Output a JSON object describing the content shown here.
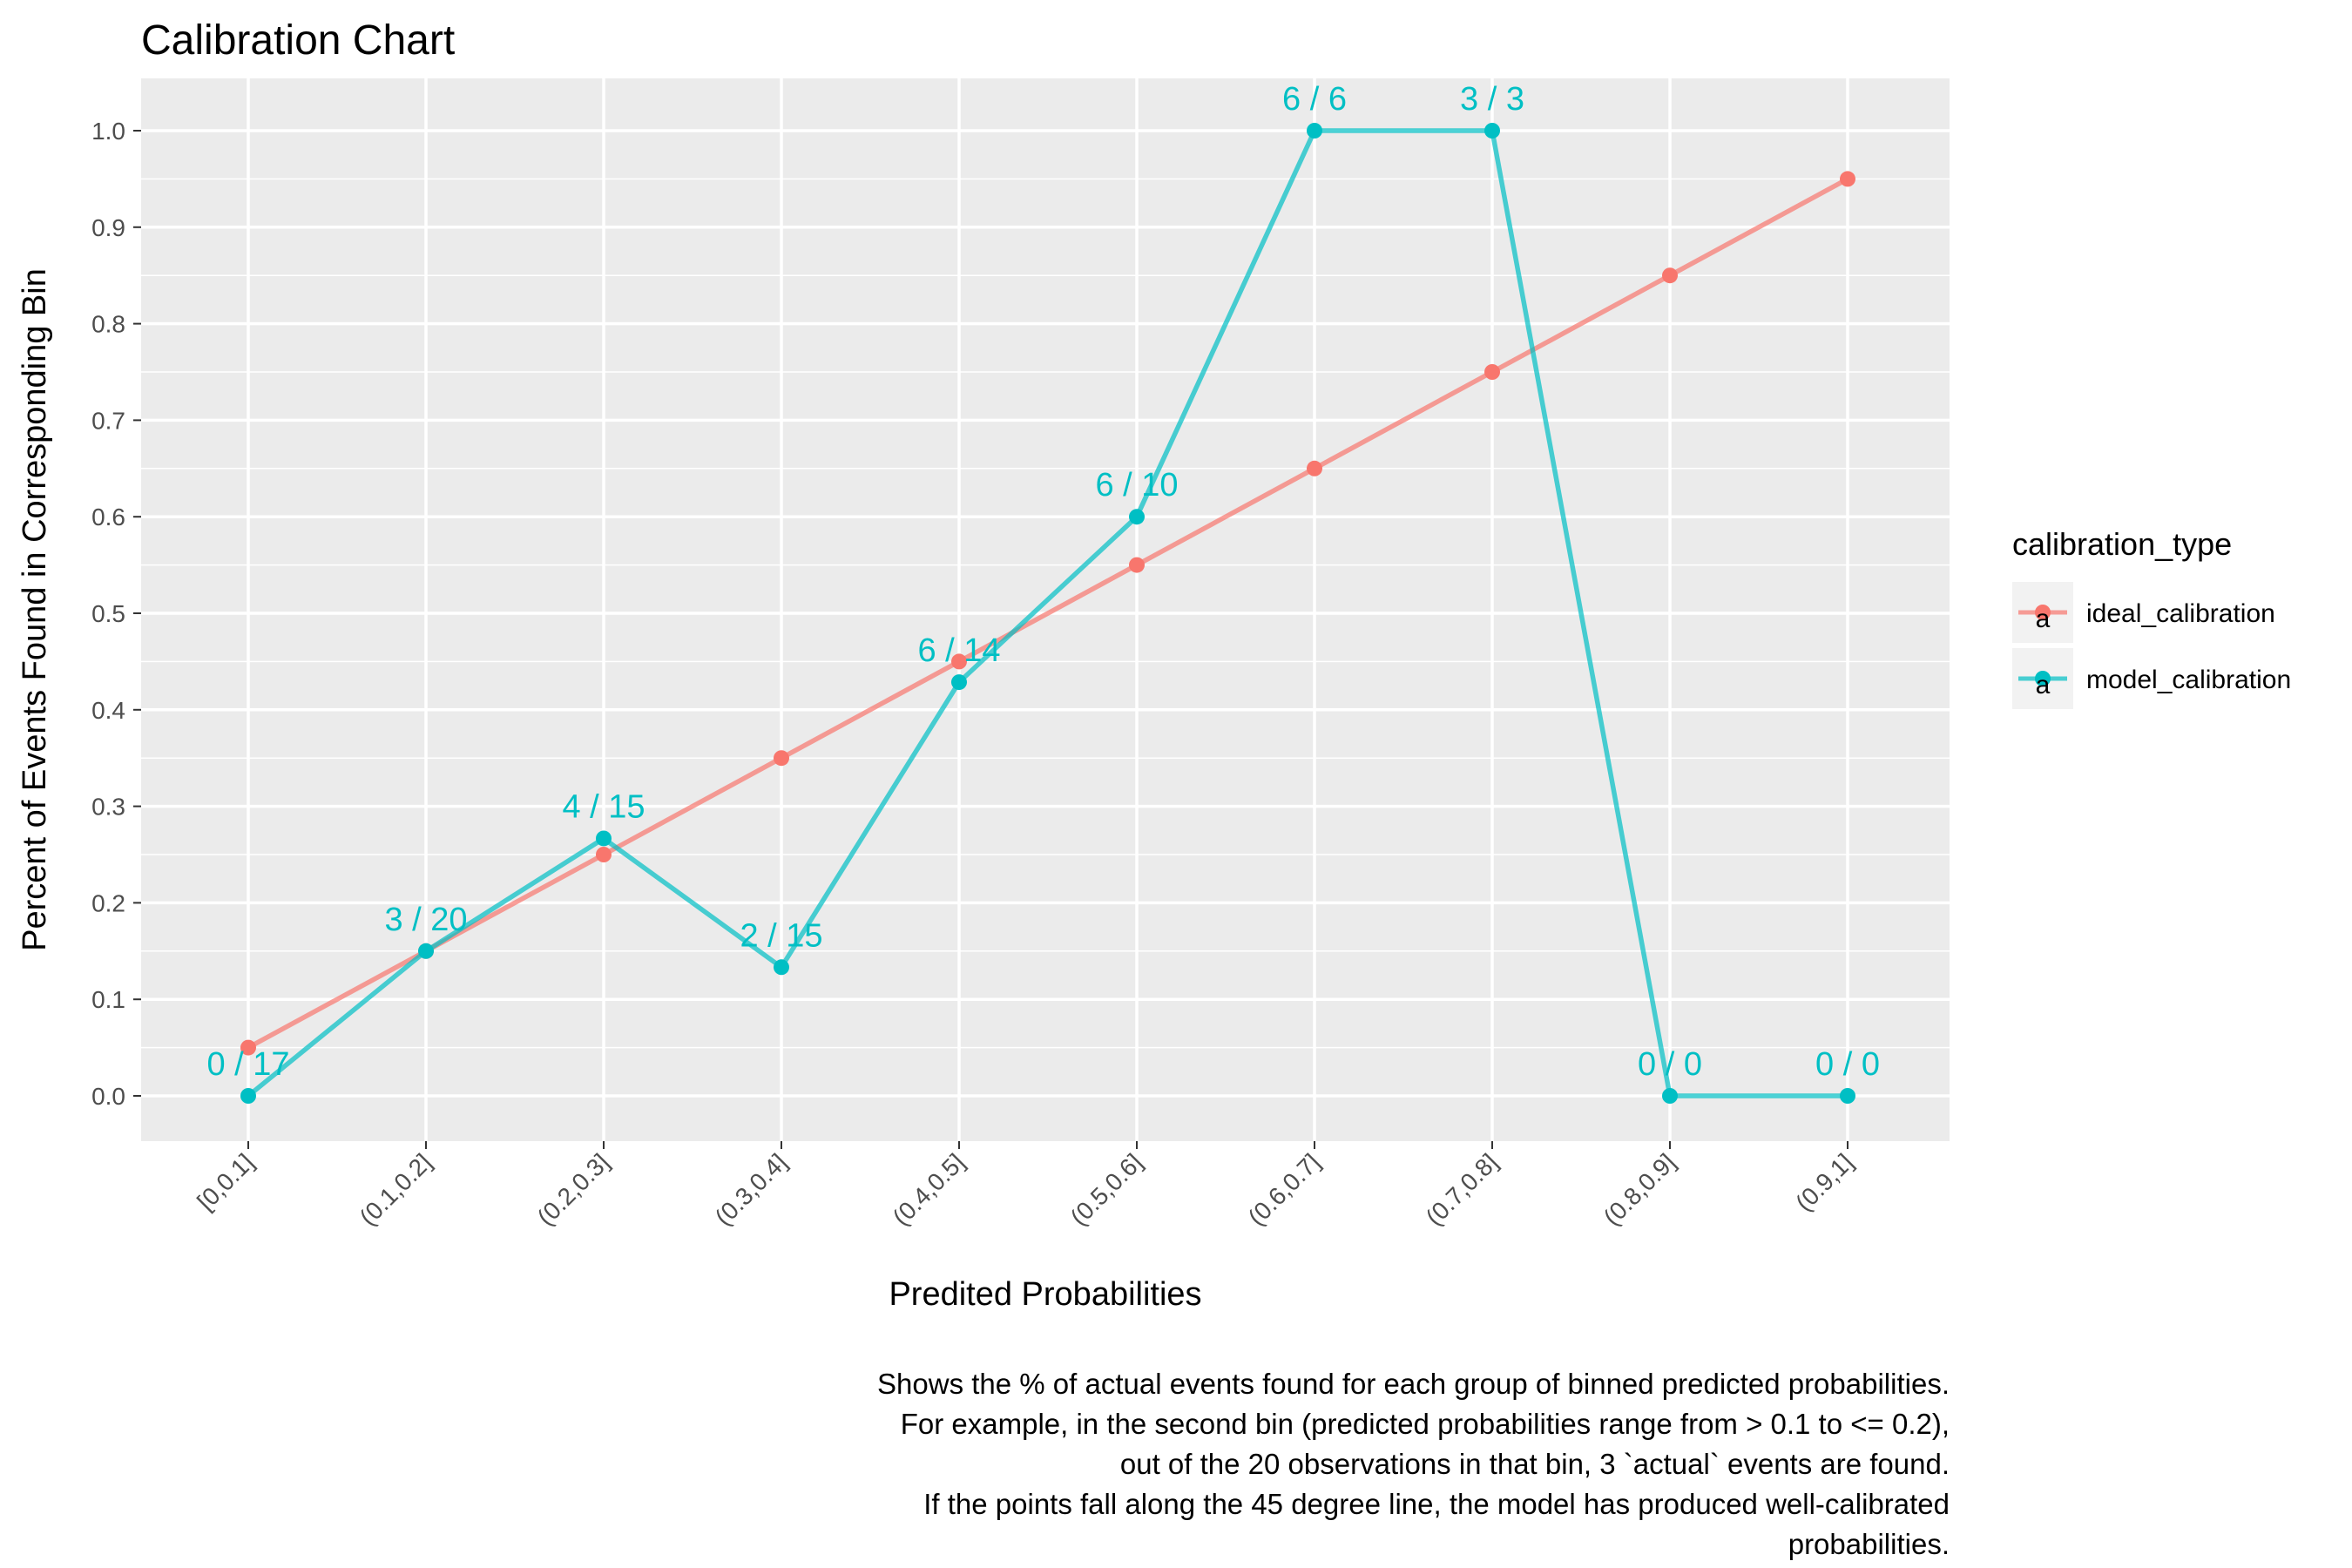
{
  "chart_data": {
    "type": "line",
    "title": "Calibration Chart",
    "xlabel": "Predited Probabilities",
    "ylabel": "Percent of Events Found in Corresponding Bin",
    "categories": [
      "[0,0.1]",
      "(0.1,0.2]",
      "(0.2,0.3]",
      "(0.3,0.4]",
      "(0.4,0.5]",
      "(0.5,0.6]",
      "(0.6,0.7]",
      "(0.7,0.8]",
      "(0.8,0.9]",
      "(0.9,1]"
    ],
    "ylim": [
      -0.05,
      1.05
    ],
    "yticks": [
      "0.0",
      "0.1",
      "0.2",
      "0.3",
      "0.4",
      "0.5",
      "0.6",
      "0.7",
      "0.8",
      "0.9",
      "1.0"
    ],
    "grid": true,
    "legend": {
      "title": "calibration_type",
      "position": "right",
      "key_glyph": "a"
    },
    "series": [
      {
        "name": "ideal_calibration",
        "color": "#F8766D",
        "values": [
          0.05,
          0.15,
          0.25,
          0.35,
          0.45,
          0.55,
          0.65,
          0.75,
          0.85,
          0.95
        ]
      },
      {
        "name": "model_calibration",
        "color": "#00BFC4",
        "values": [
          0.0,
          0.15,
          0.2667,
          0.1333,
          0.4286,
          0.6,
          1.0,
          1.0,
          0.0,
          0.0
        ],
        "labels": [
          "0 / 17",
          "3 / 20",
          "4 / 15",
          "2 / 15",
          "6 / 14",
          "6 / 10",
          "6 / 6",
          "3 / 3",
          "0 / 0",
          "0 / 0"
        ]
      }
    ],
    "caption": [
      "Shows the % of actual events found for each group of binned predicted probabilities.",
      "For example, in the second bin (predicted probabilities range from > 0.1 to <= 0.2),",
      "out of the 20 observations in that bin, 3 `actual` events are found.",
      "If the points fall along the 45 degree line, the model has produced well-calibrated",
      "probabilities."
    ],
    "colors": {
      "panel_background": "#EBEBEB",
      "grid": "#FFFFFF",
      "tick_text": "#4D4D4D"
    }
  }
}
